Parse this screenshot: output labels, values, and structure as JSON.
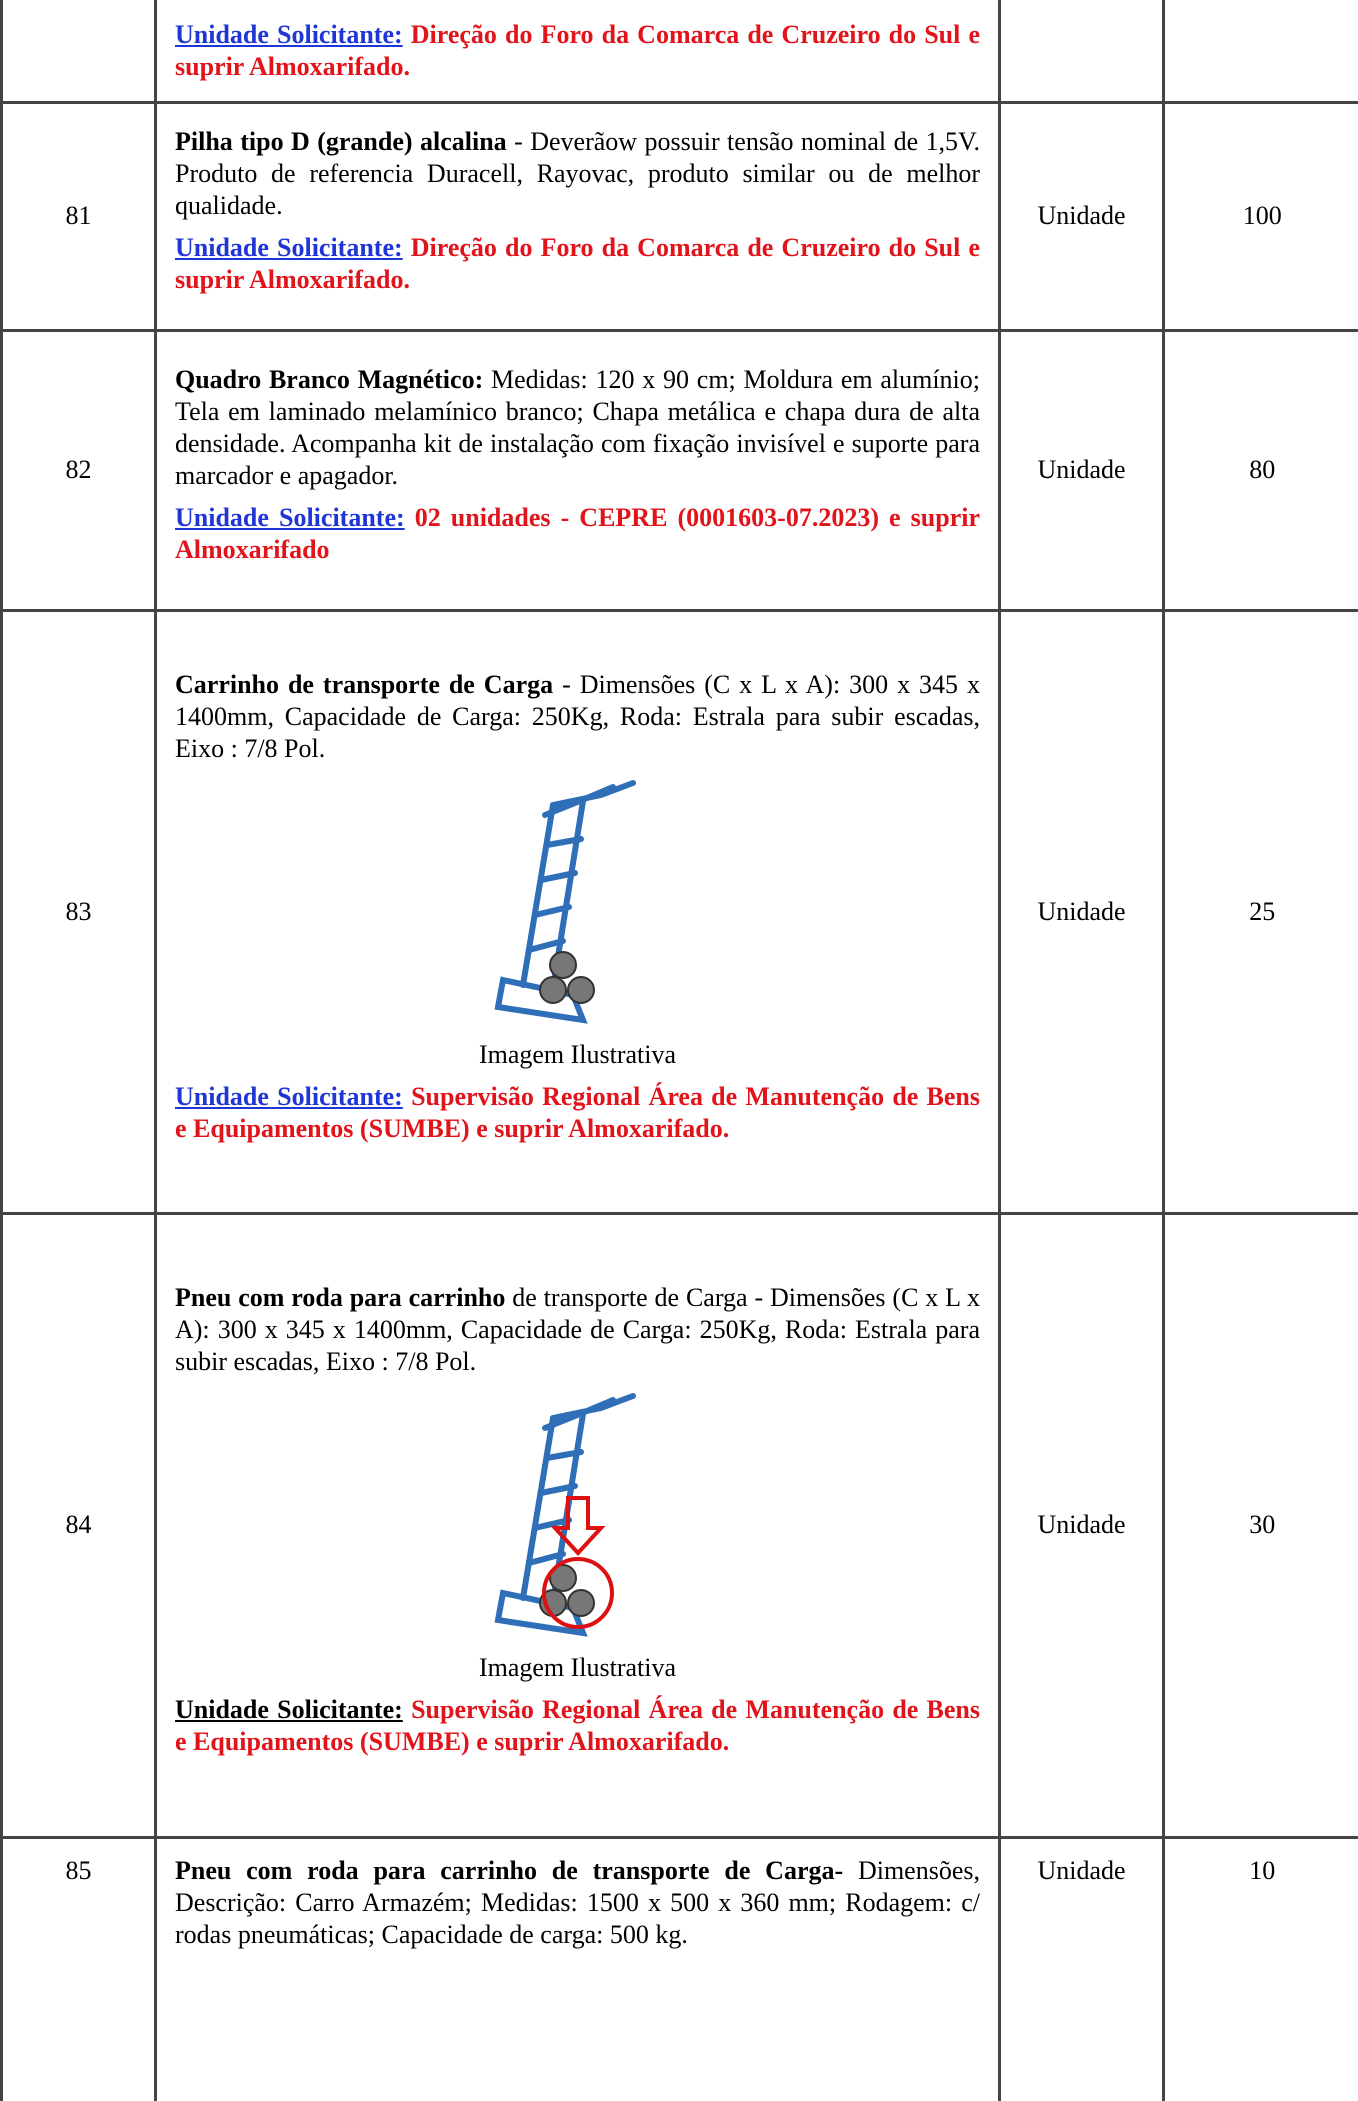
{
  "table": {
    "rows": [
      {
        "requester_label": "Unidade Solicitante:",
        "requester_text": "Direção do Foro da Comarca de Cruzeiro do Sul e suprir Almoxarifado."
      },
      {
        "item": "81",
        "title": "Pilha tipo D (grande) alcalina",
        "text": " -  Deverãow possuir tensão nominal de 1,5V. Produto de referencia Duracell, Rayovac, produto similar ou de melhor qualidade.",
        "requester_label": "Unidade Solicitante:",
        "requester_text": "Direção do Foro da Comarca de Cruzeiro do Sul e suprir Almoxarifado.",
        "unit": "Unidade",
        "quantity": "100"
      },
      {
        "item": "82",
        "title": "Quadro Branco Magnético:",
        "text": " Medidas: 120 x 90 cm; Moldura em alumínio; Tela em laminado melamínico branco; Chapa metálica e chapa dura de alta densidade. Acompanha kit de instalação com fixação invisível e suporte para marcador e apagador.",
        "requester_label": "Unidade Solicitante:",
        "requester_text": "02 unidades - CEPRE (0001603-07.2023) e suprir Almoxarifado",
        "unit": "Unidade",
        "quantity": "80"
      },
      {
        "item": "83",
        "title": "Carrinho de transporte de Carga",
        "text": " - Dimensões (C x L x A): 300 x 345 x 1400mm, Capacidade de Carga: 250Kg, Roda: Estrala para subir escadas, Eixo : 7/8 Pol.",
        "caption": "Imagem Ilustrativa",
        "requester_label": "Unidade Solicitante:",
        "requester_text": "Supervisão Regional Área de Manutenção de Bens e Equipamentos (SUMBE) e suprir Almoxarifado.",
        "unit": "Unidade",
        "quantity": "25"
      },
      {
        "item": "84",
        "title": "Pneu com roda para carrinho",
        "text": " de transporte de Carga - Dimensões (C x L x A): 300 x 345 x 1400mm, Capacidade de Carga: 250Kg, Roda: Estrala para subir escadas, Eixo : 7/8 Pol.",
        "caption": "Imagem Ilustrativa",
        "requester_label": "Unidade Solicitante:",
        "requester_text": "Supervisão Regional Área de Manutenção de Bens e Equipamentos (SUMBE) e suprir Almoxarifado.",
        "unit": "Unidade",
        "quantity": "30"
      },
      {
        "item": "85",
        "title": "Pneu com roda para carrinho de transporte de Carga-",
        "text": " Dimensões, Descrição: Carro Armazém; Medidas: 1500 x 500 x 360 mm; Rodagem: c/ rodas pneumáticas; Capacidade de carga: 500 kg.",
        "unit": "Unidade",
        "quantity": "10"
      }
    ]
  }
}
